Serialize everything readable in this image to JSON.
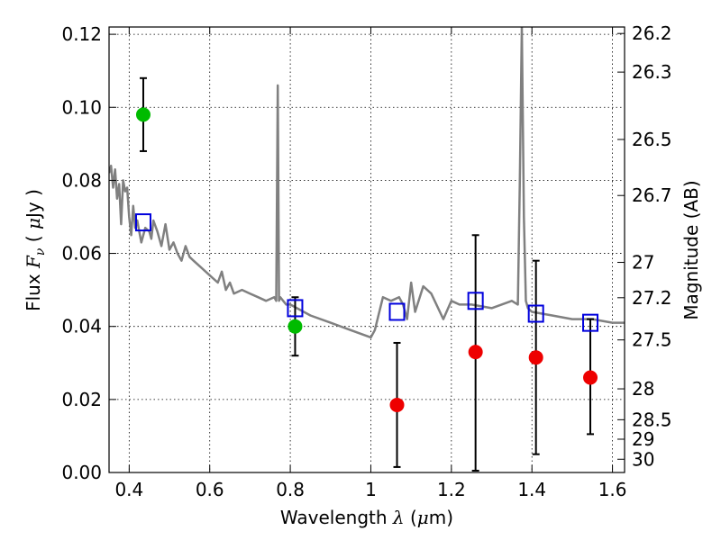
{
  "chart_data": {
    "type": "scatter",
    "xlabel": "Wavelength",
    "xlabel_symbol": "λ",
    "xlabel_unit_open": "(",
    "xlabel_unit_mu": "μ",
    "xlabel_unit_rest": "m)",
    "ylabel": "Flux",
    "ylabel_symbol": "F",
    "ylabel_sub": "ν",
    "ylabel_unit_open": "(",
    "ylabel_unit_mu": "μ",
    "ylabel_unit_rest": "Jy )",
    "y2label": "Magnitude (AB)",
    "xlim": [
      0.35,
      1.63
    ],
    "ylim": [
      0.0,
      0.122
    ],
    "grid": true,
    "x_ticks": [
      {
        "v": 0.4,
        "label": "0.4"
      },
      {
        "v": 0.6,
        "label": "0.6"
      },
      {
        "v": 0.8,
        "label": "0.8"
      },
      {
        "v": 1.0,
        "label": "1"
      },
      {
        "v": 1.2,
        "label": "1.2"
      },
      {
        "v": 1.4,
        "label": "1.4"
      },
      {
        "v": 1.6,
        "label": "1.6"
      }
    ],
    "y_ticks": [
      {
        "v": 0.0,
        "label": "0.00"
      },
      {
        "v": 0.02,
        "label": "0.02"
      },
      {
        "v": 0.04,
        "label": "0.04"
      },
      {
        "v": 0.06,
        "label": "0.06"
      },
      {
        "v": 0.08,
        "label": "0.08"
      },
      {
        "v": 0.1,
        "label": "0.10"
      },
      {
        "v": 0.12,
        "label": "0.12"
      }
    ],
    "y2_ticks": [
      {
        "label": "26.2",
        "mag": 26.2
      },
      {
        "label": "26.3",
        "mag": 26.3
      },
      {
        "label": "26.5",
        "mag": 26.5
      },
      {
        "label": "26.7",
        "mag": 26.7
      },
      {
        "label": "27",
        "mag": 27.0
      },
      {
        "label": "27.2",
        "mag": 27.2
      },
      {
        "label": "27.5",
        "mag": 27.5
      },
      {
        "label": "28",
        "mag": 28.0
      },
      {
        "label": "28.5",
        "mag": 28.5
      },
      {
        "label": "29",
        "mag": 29.0
      },
      {
        "label": "30",
        "mag": 30.0
      }
    ],
    "model_spectrum": {
      "color": "#808080",
      "x": [
        0.35,
        0.355,
        0.36,
        0.365,
        0.37,
        0.375,
        0.38,
        0.385,
        0.39,
        0.395,
        0.4,
        0.405,
        0.41,
        0.415,
        0.42,
        0.425,
        0.43,
        0.44,
        0.45,
        0.455,
        0.46,
        0.47,
        0.48,
        0.49,
        0.5,
        0.51,
        0.52,
        0.53,
        0.54,
        0.55,
        0.56,
        0.58,
        0.6,
        0.62,
        0.63,
        0.64,
        0.65,
        0.66,
        0.68,
        0.7,
        0.72,
        0.74,
        0.76,
        0.765,
        0.769,
        0.772,
        0.775,
        0.79,
        0.8,
        0.85,
        0.9,
        0.95,
        1.0,
        1.01,
        1.03,
        1.05,
        1.07,
        1.08,
        1.09,
        1.1,
        1.11,
        1.13,
        1.15,
        1.18,
        1.2,
        1.22,
        1.25,
        1.3,
        1.35,
        1.365,
        1.37,
        1.375,
        1.38,
        1.385,
        1.39,
        1.4,
        1.45,
        1.5,
        1.55,
        1.6,
        1.63
      ],
      "y": [
        0.082,
        0.084,
        0.078,
        0.083,
        0.075,
        0.079,
        0.068,
        0.08,
        0.077,
        0.078,
        0.07,
        0.065,
        0.073,
        0.067,
        0.069,
        0.066,
        0.063,
        0.067,
        0.066,
        0.064,
        0.069,
        0.066,
        0.062,
        0.068,
        0.061,
        0.063,
        0.06,
        0.058,
        0.062,
        0.059,
        0.058,
        0.056,
        0.054,
        0.052,
        0.055,
        0.05,
        0.052,
        0.049,
        0.05,
        0.049,
        0.048,
        0.047,
        0.048,
        0.047,
        0.106,
        0.047,
        0.048,
        0.046,
        0.046,
        0.043,
        0.041,
        0.039,
        0.037,
        0.039,
        0.048,
        0.047,
        0.048,
        0.046,
        0.042,
        0.052,
        0.044,
        0.051,
        0.049,
        0.042,
        0.047,
        0.046,
        0.046,
        0.045,
        0.047,
        0.046,
        0.08,
        0.122,
        0.07,
        0.047,
        0.045,
        0.044,
        0.043,
        0.042,
        0.042,
        0.041,
        0.041
      ]
    },
    "series": [
      {
        "marker": "circle",
        "color": "#00bb00",
        "points": [
          {
            "x": 0.435,
            "y": 0.098,
            "ylo": 0.088,
            "yhi": 0.108
          },
          {
            "x": 0.812,
            "y": 0.04,
            "ylo": 0.032,
            "yhi": 0.048
          }
        ]
      },
      {
        "marker": "circle",
        "color": "#ee0000",
        "points": [
          {
            "x": 1.065,
            "y": 0.0185,
            "ylo": 0.0015,
            "yhi": 0.0355
          },
          {
            "x": 1.26,
            "y": 0.033,
            "ylo": 0.0005,
            "yhi": 0.065
          },
          {
            "x": 1.41,
            "y": 0.0315,
            "ylo": 0.005,
            "yhi": 0.058
          },
          {
            "x": 1.545,
            "y": 0.026,
            "ylo": 0.0105,
            "yhi": 0.042
          }
        ]
      },
      {
        "marker": "square",
        "color": "#0000dd",
        "points": [
          {
            "x": 0.435,
            "y": 0.0685
          },
          {
            "x": 0.812,
            "y": 0.045
          },
          {
            "x": 1.065,
            "y": 0.044
          },
          {
            "x": 1.26,
            "y": 0.047
          },
          {
            "x": 1.41,
            "y": 0.0435
          },
          {
            "x": 1.545,
            "y": 0.041
          }
        ]
      }
    ]
  }
}
